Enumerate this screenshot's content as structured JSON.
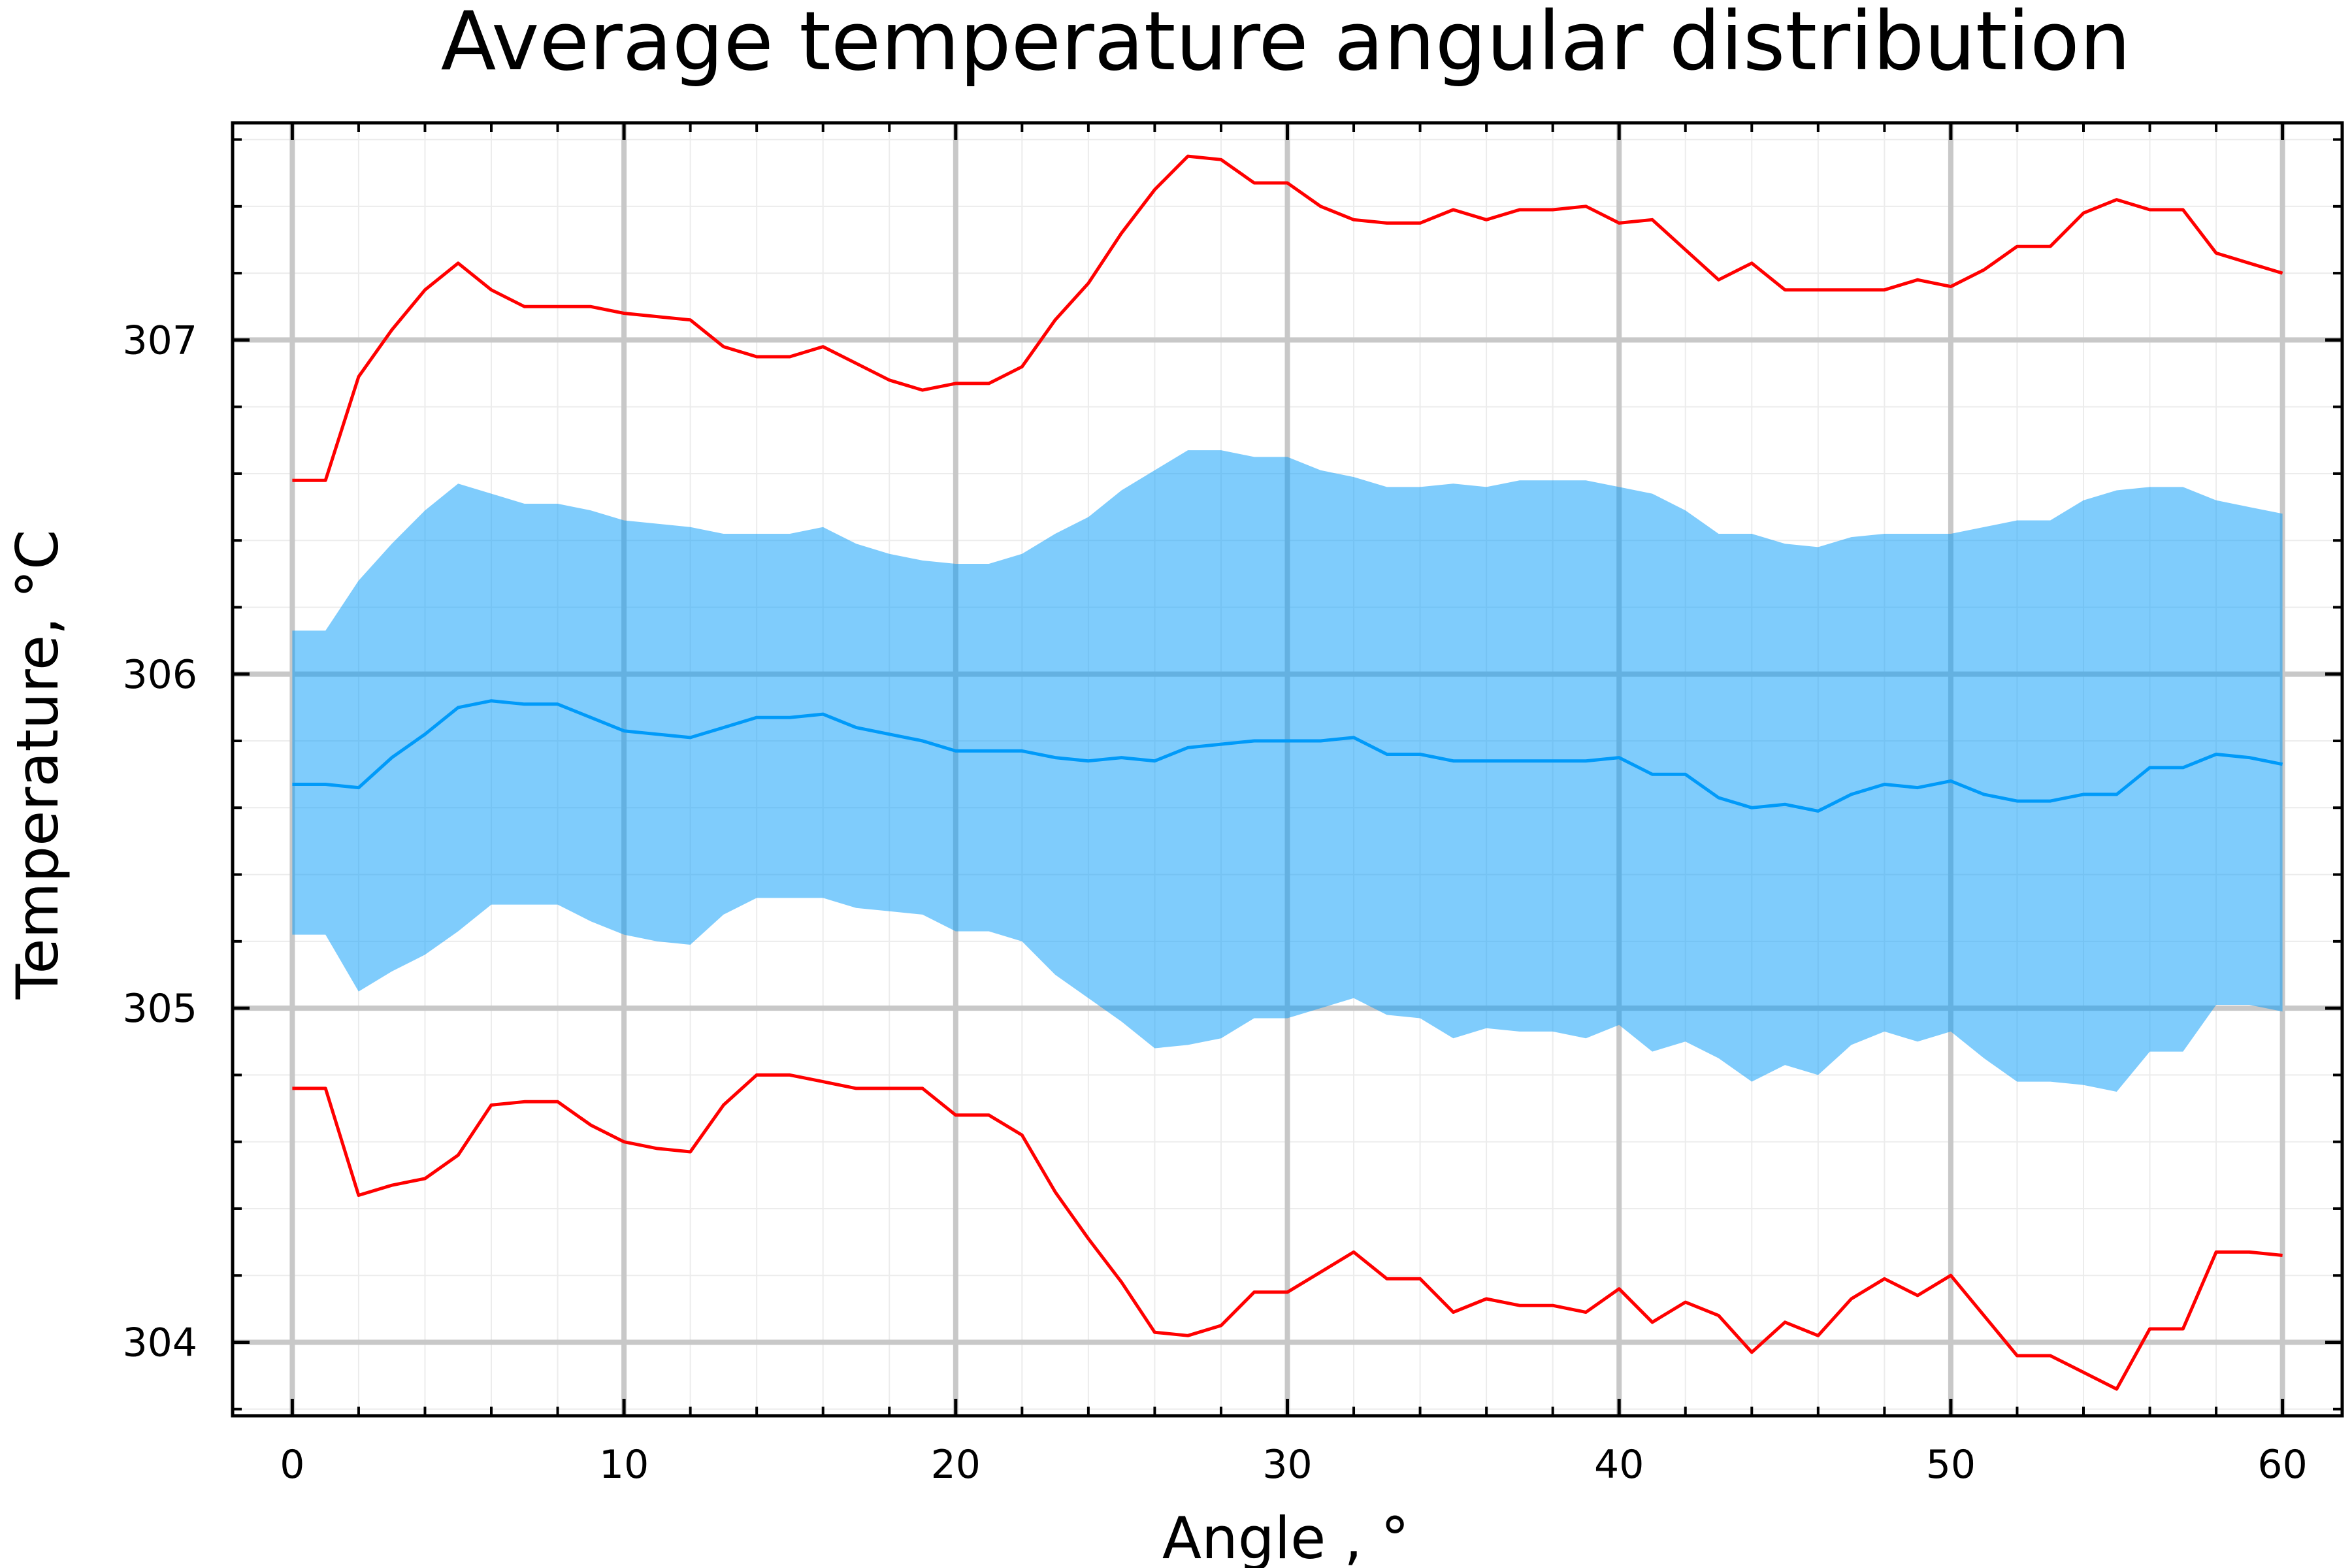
{
  "chart_data": {
    "type": "line",
    "title": "Average temperature angular distribution",
    "xlabel": "Angle , °",
    "ylabel": "Temperature, °C",
    "xlim": [
      -1.8,
      61.8
    ],
    "ylim": [
      303.78,
      307.65
    ],
    "x_ticks": [
      0,
      10,
      20,
      30,
      40,
      50,
      60
    ],
    "x_tick_labels": [
      "0",
      "10",
      "20",
      "30",
      "40",
      "50",
      "60"
    ],
    "y_ticks": [
      304,
      305,
      306,
      307
    ],
    "y_tick_labels": [
      "304",
      "305",
      "306",
      "307"
    ],
    "grid": true,
    "legend": "none",
    "x": [
      0,
      1,
      2,
      3,
      4,
      5,
      6,
      7,
      8,
      9,
      10,
      11,
      12,
      13,
      14,
      15,
      16,
      17,
      18,
      19,
      20,
      21,
      22,
      23,
      24,
      25,
      26,
      27,
      28,
      29,
      30,
      31,
      32,
      33,
      34,
      35,
      36,
      37,
      38,
      39,
      40,
      41,
      42,
      43,
      44,
      45,
      46,
      47,
      48,
      49,
      50,
      51,
      52,
      53,
      54,
      55,
      56,
      57,
      58,
      59,
      60
    ],
    "mean": [
      305.67,
      305.67,
      305.66,
      305.75,
      305.82,
      305.9,
      305.92,
      305.91,
      305.91,
      305.87,
      305.83,
      305.82,
      305.81,
      305.84,
      305.87,
      305.87,
      305.88,
      305.84,
      305.82,
      305.8,
      305.77,
      305.77,
      305.77,
      305.75,
      305.74,
      305.75,
      305.74,
      305.78,
      305.79,
      305.8,
      305.8,
      305.8,
      305.81,
      305.76,
      305.76,
      305.74,
      305.74,
      305.74,
      305.74,
      305.74,
      305.75,
      305.7,
      305.7,
      305.63,
      305.6,
      305.61,
      305.59,
      305.64,
      305.67,
      305.66,
      305.68,
      305.64,
      305.62,
      305.62,
      305.64,
      305.64,
      305.72,
      305.72,
      305.76,
      305.75,
      305.73
    ],
    "band_upper": [
      306.13,
      306.13,
      306.28,
      306.39,
      306.49,
      306.57,
      306.54,
      306.51,
      306.51,
      306.49,
      306.46,
      306.45,
      306.44,
      306.42,
      306.42,
      306.42,
      306.44,
      306.39,
      306.36,
      306.34,
      306.33,
      306.33,
      306.36,
      306.42,
      306.47,
      306.55,
      306.61,
      306.67,
      306.67,
      306.65,
      306.65,
      306.61,
      306.59,
      306.56,
      306.56,
      306.57,
      306.56,
      306.58,
      306.58,
      306.58,
      306.56,
      306.54,
      306.49,
      306.42,
      306.42,
      306.39,
      306.38,
      306.41,
      306.42,
      306.42,
      306.42,
      306.44,
      306.46,
      306.46,
      306.52,
      306.55,
      306.56,
      306.56,
      306.52,
      306.5,
      306.48
    ],
    "band_lower": [
      305.22,
      305.22,
      305.05,
      305.11,
      305.16,
      305.23,
      305.31,
      305.31,
      305.31,
      305.26,
      305.22,
      305.2,
      305.19,
      305.28,
      305.33,
      305.33,
      305.33,
      305.3,
      305.29,
      305.28,
      305.23,
      305.23,
      305.2,
      305.1,
      305.03,
      304.96,
      304.88,
      304.89,
      304.91,
      304.97,
      304.97,
      305.0,
      305.03,
      304.98,
      304.97,
      304.91,
      304.94,
      304.93,
      304.93,
      304.91,
      304.95,
      304.87,
      304.9,
      304.85,
      304.78,
      304.83,
      304.8,
      304.89,
      304.93,
      304.9,
      304.93,
      304.85,
      304.78,
      304.78,
      304.77,
      304.75,
      304.87,
      304.87,
      305.01,
      305.01,
      304.99
    ],
    "max": [
      306.58,
      306.58,
      306.89,
      307.03,
      307.15,
      307.23,
      307.15,
      307.1,
      307.1,
      307.1,
      307.08,
      307.07,
      307.06,
      306.98,
      306.95,
      306.95,
      306.98,
      306.93,
      306.88,
      306.85,
      306.87,
      306.87,
      306.92,
      307.06,
      307.17,
      307.32,
      307.45,
      307.55,
      307.54,
      307.47,
      307.47,
      307.4,
      307.36,
      307.35,
      307.35,
      307.39,
      307.36,
      307.39,
      307.39,
      307.4,
      307.35,
      307.36,
      307.27,
      307.18,
      307.23,
      307.15,
      307.15,
      307.15,
      307.15,
      307.18,
      307.16,
      307.21,
      307.28,
      307.28,
      307.38,
      307.42,
      307.39,
      307.39,
      307.26,
      307.23,
      307.2
    ],
    "min": [
      304.76,
      304.76,
      304.44,
      304.47,
      304.49,
      304.56,
      304.71,
      304.72,
      304.72,
      304.65,
      304.6,
      304.58,
      304.57,
      304.71,
      304.8,
      304.8,
      304.78,
      304.76,
      304.76,
      304.76,
      304.68,
      304.68,
      304.62,
      304.45,
      304.31,
      304.18,
      304.03,
      304.02,
      304.05,
      304.15,
      304.15,
      304.21,
      304.27,
      304.19,
      304.19,
      304.09,
      304.13,
      304.11,
      304.11,
      304.09,
      304.16,
      304.06,
      304.12,
      304.08,
      303.97,
      304.06,
      304.02,
      304.13,
      304.19,
      304.14,
      304.2,
      304.08,
      303.96,
      303.96,
      303.91,
      303.86,
      304.04,
      304.04,
      304.27,
      304.27,
      304.26
    ],
    "colors": {
      "mean_line": "#009af9",
      "band_fill": "#009af9",
      "band_opacity": 0.5,
      "extreme_lines": "#ff0000",
      "major_grid": "#c8c8c8",
      "minor_grid": "#ececec",
      "frame": "#000000"
    }
  }
}
